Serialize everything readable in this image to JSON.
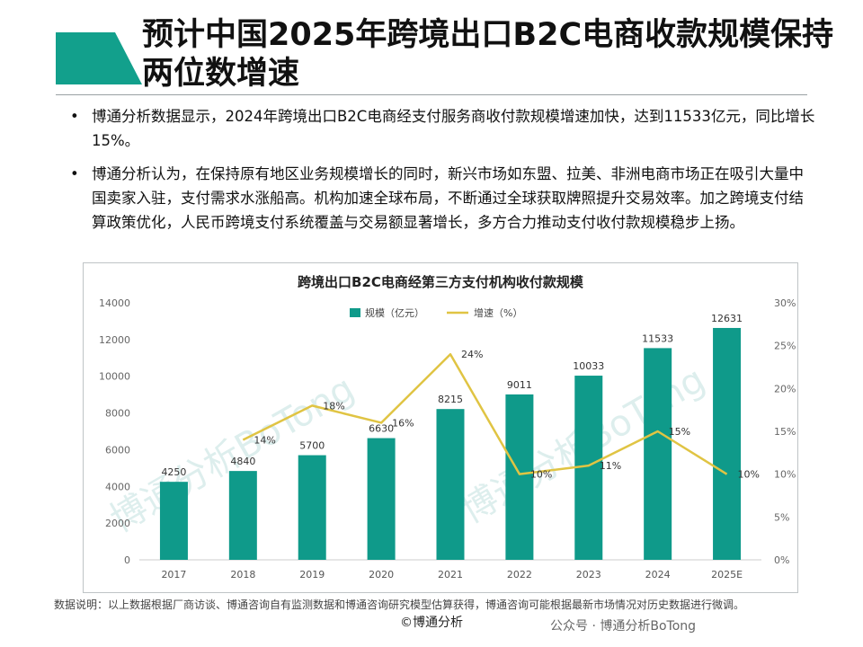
{
  "header": {
    "title": "预计中国2025年跨境出口B2C电商收款规模保持两位数增速",
    "accent_color": "#12a08c"
  },
  "bullets": [
    "博通分析数据显示，2024年跨境出口B2C电商经支付服务商收付款规模增速加快，达到11533亿元，同比增长15%。",
    "博通分析认为，在保持原有地区业务规模增长的同时，新兴市场如东盟、拉美、非洲电商市场正在吸引大量中国卖家入驻，支付需求水涨船高。机构加速全球布局，不断通过全球获取牌照提升交易效率。加之跨境支付结算政策优化，人民币跨境支付系统覆盖与交易额显著增长，多方合力推动支付收付款规模稳步上扬。"
  ],
  "bullet_marker": "•",
  "chart_data": {
    "type": "bar",
    "title": "跨境出口B2C电商经第三方支付机构收付款规模",
    "categories": [
      "2017",
      "2018",
      "2019",
      "2020",
      "2021",
      "2022",
      "2023",
      "2024",
      "2025E"
    ],
    "series": [
      {
        "name": "规模（亿元）",
        "type": "bar",
        "axis": "left",
        "color": "#0f9a8a",
        "values": [
          4250,
          4840,
          5700,
          6630,
          8215,
          9011,
          10033,
          11533,
          12631
        ],
        "labels": [
          "4250",
          "4840",
          "5700",
          "6630",
          "8215",
          "9011",
          "10033",
          "11533",
          "12631"
        ]
      },
      {
        "name": "增速（%）",
        "type": "line",
        "axis": "right",
        "color": "#e0c443",
        "values": [
          null,
          14,
          18,
          16,
          24,
          10,
          11,
          15,
          10
        ],
        "labels": [
          "",
          "14%",
          "18%",
          "16%",
          "24%",
          "10%",
          "11%",
          "15%",
          "10%"
        ]
      }
    ],
    "ylim_left": [
      0,
      14000
    ],
    "ylim_right": [
      0,
      30
    ],
    "left_ticks": [
      "0",
      "2000",
      "4000",
      "6000",
      "8000",
      "10000",
      "12000",
      "14000"
    ],
    "right_ticks": [
      "0%",
      "5%",
      "10%",
      "15%",
      "20%",
      "25%",
      "30%"
    ],
    "legend_position": "top-center",
    "grid": false,
    "watermark": "博通分析BoTong"
  },
  "footer": {
    "note": "数据说明：以上数据根据厂商访谈、博通咨询自有监测数据和博通咨询研究模型估算获得，博通咨询可能根据最新市场情况对历史数据进行微调。",
    "copyright": "©博通分析",
    "wechat": "公众号 · 博通分析BoTong"
  }
}
